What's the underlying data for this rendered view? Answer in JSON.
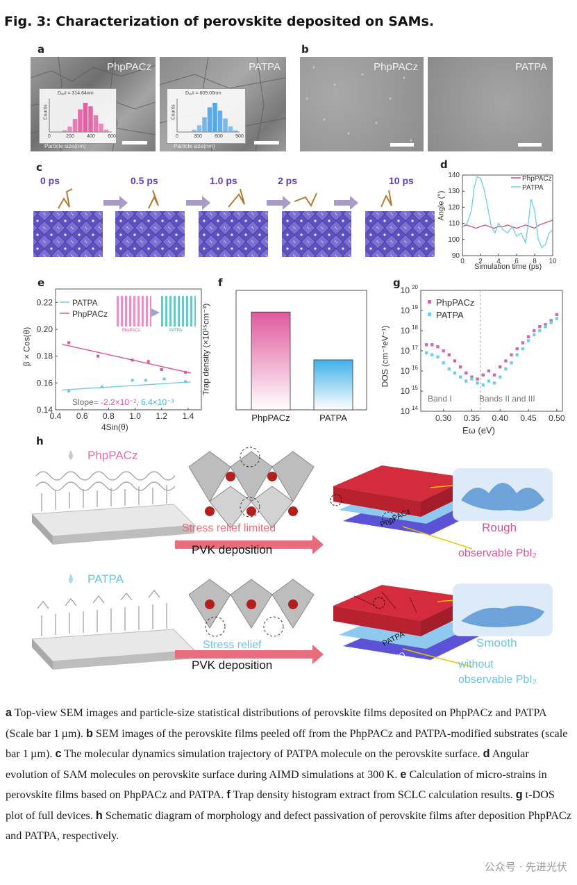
{
  "figure_title": "Fig. 3: Characterization of perovskite deposited on SAMs.",
  "panels": {
    "a": {
      "label": "a",
      "left_tag": "PhpPACz",
      "right_tag": "PATPA",
      "left_davg": "Dₐᵥᵍ = 314.64nm",
      "right_davg": "Dₐᵥᵍ = 609.00nm",
      "counts": "Counts",
      "xlabel": "Particle size(nm)",
      "left_ticks": [
        "0",
        "200",
        "400",
        "600"
      ],
      "right_ticks": [
        "0",
        "300",
        "600",
        "900"
      ]
    },
    "b": {
      "label": "b",
      "left_tag": "PhpPACz",
      "right_tag": "PATPA"
    },
    "c": {
      "label": "c",
      "times": [
        "0 ps",
        "0.5 ps",
        "1.0 ps",
        "2 ps",
        "10 ps"
      ]
    },
    "d": {
      "label": "d",
      "legend": [
        "PhpPACz",
        "PATPA"
      ],
      "ylabel": "Angle (°)",
      "xlabel": "Simulation time (ps)"
    },
    "e": {
      "label": "e",
      "legend": [
        "PATPA",
        "PhpPACz"
      ],
      "ylabel": "β × Cos(θ)",
      "xlabel": "4Sin(θ)",
      "slope_prefix": "Slope=",
      "slope_pink": "-2.2×10⁻²",
      "slope_sep": ",",
      "slope_blue": "6.4×10⁻³",
      "inset_left": "PhpPACz",
      "inset_right": "PATPA"
    },
    "f": {
      "label": "f",
      "ylabel": "Trap density (×10¹⁵cm⁻³)"
    },
    "g": {
      "label": "g",
      "legend": [
        "PhpPACz",
        "PATPA"
      ],
      "ylabel": "DOS (cm⁻³eV⁻¹)",
      "xlabel": "Eω (eV)",
      "band1": "Band I",
      "band23": "Bands II and III"
    },
    "h": {
      "label": "h",
      "top": {
        "sam": "PhpPACz",
        "stress": "Stress relief limited",
        "dep": "PVK deposition",
        "sam_layer": "PhpPACz",
        "ito": "ITO",
        "surface": "Rough",
        "pbi": "observable PbI₂"
      },
      "bottom": {
        "sam": "PATPA",
        "stress": "Stress relief",
        "dep": "PVK deposition",
        "sam_layer": "PATPA",
        "ito": "ITO",
        "surface": "Smooth",
        "pbi1": "without",
        "pbi2": "observable PbI₂"
      }
    }
  },
  "chart_data": [
    {
      "type": "histogram",
      "panel": "a-left",
      "x": [
        150,
        200,
        250,
        300,
        350,
        400,
        450,
        500,
        550
      ],
      "values": [
        3,
        9,
        22,
        38,
        49,
        43,
        28,
        14,
        4
      ],
      "xlim": [
        0,
        600
      ],
      "color": "#e3559f"
    },
    {
      "type": "histogram",
      "panel": "a-right",
      "x": [
        250,
        325,
        400,
        475,
        550,
        625,
        700,
        775,
        850
      ],
      "values": [
        4,
        12,
        26,
        44,
        52,
        38,
        24,
        10,
        3
      ],
      "xlim": [
        0,
        900
      ],
      "color": "#4aa3e8"
    },
    {
      "type": "line",
      "panel": "d",
      "xlabel": "Simulation time (ps)",
      "ylabel": "Angle (°)",
      "xlim": [
        0,
        10
      ],
      "ylim": [
        90,
        140
      ],
      "xticks": [
        0,
        2,
        4,
        6,
        8,
        10
      ],
      "yticks": [
        90,
        100,
        110,
        120,
        130,
        140
      ],
      "series": [
        {
          "name": "PhpPACz",
          "color": "#c0508a",
          "x": [
            0,
            0.5,
            1,
            1.5,
            2,
            2.5,
            3,
            3.5,
            4,
            4.5,
            5,
            5.5,
            6,
            6.5,
            7,
            7.5,
            8,
            8.5,
            9,
            9.5,
            10
          ],
          "y": [
            108,
            109,
            108,
            107,
            108,
            109,
            108,
            107,
            108,
            108,
            109,
            108,
            107,
            108,
            109,
            108,
            107,
            109,
            110,
            111,
            112
          ]
        },
        {
          "name": "PATPA",
          "color": "#6ccfe0",
          "x": [
            0,
            0.5,
            1,
            1.3,
            1.6,
            2,
            2.4,
            2.8,
            3.2,
            3.6,
            4,
            4.5,
            5,
            5.5,
            6,
            6.5,
            7,
            7.3,
            7.6,
            8,
            8.4,
            8.8,
            9.2,
            9.6,
            10
          ],
          "y": [
            108,
            110,
            118,
            132,
            139,
            138,
            131,
            120,
            108,
            104,
            110,
            106,
            104,
            108,
            102,
            104,
            98,
            110,
            125,
            118,
            100,
            95,
            97,
            104,
            106
          ]
        }
      ]
    },
    {
      "type": "scatter",
      "panel": "e",
      "xlabel": "4Sin(θ)",
      "ylabel": "β × Cos(θ)",
      "xlim": [
        0.4,
        1.5
      ],
      "ylim": [
        0.14,
        0.23
      ],
      "xticks": [
        0.4,
        0.6,
        0.8,
        1.0,
        1.2,
        1.4
      ],
      "yticks": [
        0.14,
        0.16,
        0.18,
        0.2,
        0.22
      ],
      "series": [
        {
          "name": "PATPA",
          "color": "#74c6e8",
          "x": [
            0.5,
            0.75,
            0.98,
            1.08,
            1.22,
            1.38
          ],
          "y": [
            0.154,
            0.157,
            0.162,
            0.162,
            0.163,
            0.161
          ],
          "fit": [
            [
              0.45,
              0.1548
            ],
            [
              1.42,
              0.1608
            ]
          ]
        },
        {
          "name": "PhpPACz",
          "color": "#d5589a",
          "x": [
            0.5,
            0.72,
            0.98,
            1.1,
            1.2,
            1.38
          ],
          "y": [
            0.19,
            0.18,
            0.177,
            0.176,
            0.17,
            0.168
          ],
          "fit": [
            [
              0.45,
              0.1888
            ],
            [
              1.42,
              0.1674
            ]
          ]
        }
      ]
    },
    {
      "type": "bar",
      "panel": "f",
      "ylabel": "Trap density (×10¹⁵cm⁻³)",
      "categories": [
        "PhpPACz",
        "PATPA"
      ],
      "values": [
        6.55,
        3.35
      ],
      "ylim": [
        0,
        8
      ],
      "colors": [
        "#e0589c",
        "#3fb0e8"
      ]
    },
    {
      "type": "scatter",
      "panel": "g",
      "xlabel": "Eω (eV)",
      "ylabel": "DOS (cm⁻³eV⁻¹)",
      "xlim": [
        0.26,
        0.51
      ],
      "ylim_log10": [
        14,
        20
      ],
      "log_y": true,
      "xticks": [
        0.3,
        0.35,
        0.4,
        0.45,
        0.5
      ],
      "yticks_log10": [
        14,
        15,
        16,
        17,
        18,
        19,
        20
      ],
      "series": [
        {
          "name": "PhpPACz",
          "color": "#c86cb0",
          "x": [
            0.27,
            0.28,
            0.29,
            0.3,
            0.31,
            0.32,
            0.33,
            0.34,
            0.35,
            0.36,
            0.37,
            0.38,
            0.39,
            0.4,
            0.41,
            0.42,
            0.43,
            0.44,
            0.45,
            0.46,
            0.47,
            0.48,
            0.49,
            0.5
          ],
          "log_y": [
            17.3,
            17.3,
            17.2,
            17.0,
            16.8,
            16.5,
            16.2,
            15.9,
            15.7,
            15.6,
            15.8,
            16.0,
            15.8,
            16.2,
            16.5,
            16.8,
            17.1,
            17.4,
            17.7,
            18.0,
            18.2,
            18.3,
            18.5,
            18.8
          ]
        },
        {
          "name": "PATPA",
          "color": "#74cde8",
          "x": [
            0.27,
            0.28,
            0.29,
            0.3,
            0.31,
            0.32,
            0.33,
            0.34,
            0.35,
            0.36,
            0.37,
            0.38,
            0.39,
            0.4,
            0.41,
            0.42,
            0.43,
            0.44,
            0.45,
            0.46,
            0.47,
            0.48,
            0.49,
            0.5
          ],
          "log_y": [
            16.9,
            16.8,
            16.7,
            16.4,
            16.1,
            15.9,
            15.7,
            15.5,
            15.6,
            15.4,
            15.3,
            15.5,
            15.4,
            15.7,
            16.1,
            16.4,
            16.8,
            17.1,
            17.5,
            17.8,
            18.0,
            18.2,
            18.4,
            18.6
          ]
        }
      ]
    }
  ],
  "caption_parts": [
    {
      "b": "a",
      "t": " Top-view SEM images and particle-size statistical distributions of perovskite films deposited on PhpPACz and PATPA (Scale bar 1 µm). "
    },
    {
      "b": "b",
      "t": " SEM images of the perovskite films peeled off from the PhpPACz and PATPA-modified substrates (scale bar 1 µm). "
    },
    {
      "b": "c",
      "t": " The molecular dynamics simulation trajectory of PATPA molecule on the perovskite surface. "
    },
    {
      "b": "d",
      "t": " Angular evolution of SAM molecules on perovskite surface during AIMD simulations at 300 K. "
    },
    {
      "b": "e",
      "t": " Calculation of micro-strains in perovskite films based on PhpPACz and PATPA. "
    },
    {
      "b": "f",
      "t": " Trap density histogram extract from SCLC calculation results. "
    },
    {
      "b": "g",
      "t": " t-DOS plot of full devices. "
    },
    {
      "b": "h",
      "t": " Schematic diagram of morphology and defect passivation of perovskite films after deposition PhpPACz and PATPA, respectively."
    }
  ],
  "watermark": "公众号 · 先进光伏"
}
